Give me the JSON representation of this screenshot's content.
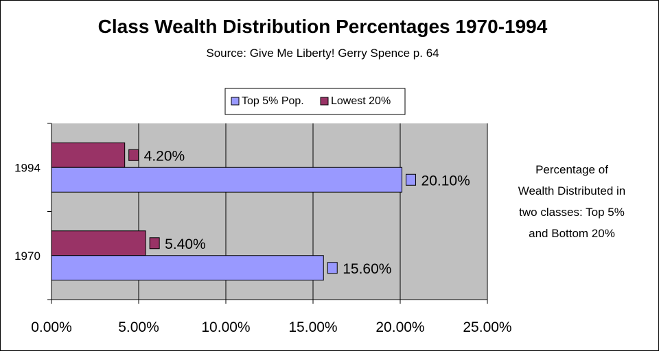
{
  "chart_data": {
    "type": "bar",
    "orientation": "horizontal",
    "title": "Class Wealth Distribution Percentages 1970-1994",
    "subtitle": "Source:  Give Me Liberty!  Gerry Spence p. 64",
    "categories": [
      "1994",
      "1970"
    ],
    "series": [
      {
        "name": "Lowest 20%",
        "values": [
          4.2,
          5.4
        ],
        "labels": [
          "4.20%",
          "5.40%"
        ],
        "color": "#993366"
      },
      {
        "name": "Top 5% Pop.",
        "values": [
          20.1,
          15.6
        ],
        "labels": [
          "20.10%",
          "15.60%"
        ],
        "color": "#9999ff"
      }
    ],
    "legend": [
      "Top 5% Pop.",
      "Lowest 20%"
    ],
    "legend_position": "top",
    "xlim": [
      0,
      25
    ],
    "x_ticks": [
      "0.00%",
      "5.00%",
      "10.00%",
      "15.00%",
      "20.00%",
      "25.00%"
    ],
    "grid": true,
    "plot_background": "#c0c0c0",
    "annotation_lines": [
      "Percentage of",
      "Wealth Distributed in",
      "two classes: Top 5%",
      "and Bottom 20%"
    ]
  }
}
